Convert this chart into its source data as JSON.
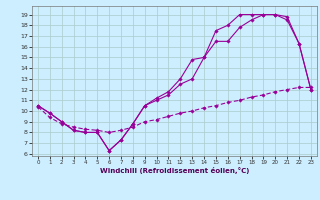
{
  "xlabel": "Windchill (Refroidissement éolien,°C)",
  "background_color": "#cceeff",
  "grid_color": "#aacccc",
  "line_color": "#990099",
  "xlim": [
    -0.5,
    23.5
  ],
  "ylim": [
    5.8,
    19.8
  ],
  "xticks": [
    0,
    1,
    2,
    3,
    4,
    5,
    6,
    7,
    8,
    9,
    10,
    11,
    12,
    13,
    14,
    15,
    16,
    17,
    18,
    19,
    20,
    21,
    22,
    23
  ],
  "yticks": [
    6,
    7,
    8,
    9,
    10,
    11,
    12,
    13,
    14,
    15,
    16,
    17,
    18,
    19
  ],
  "line1_x": [
    0,
    1,
    2,
    3,
    4,
    5,
    6,
    7,
    8,
    9,
    10,
    11,
    12,
    13,
    14,
    15,
    16,
    17,
    18,
    19,
    20,
    21,
    22,
    23
  ],
  "line1_y": [
    10.5,
    9.8,
    9.0,
    8.2,
    8.0,
    8.0,
    6.3,
    7.3,
    8.8,
    10.5,
    11.0,
    11.5,
    12.5,
    13.0,
    15.0,
    16.5,
    16.5,
    17.8,
    18.5,
    19.0,
    19.0,
    18.5,
    16.3,
    12.0
  ],
  "line2_x": [
    0,
    1,
    2,
    3,
    4,
    5,
    6,
    7,
    8,
    9,
    10,
    11,
    12,
    13,
    14,
    15,
    16,
    17,
    18,
    19,
    20,
    21,
    22,
    23
  ],
  "line2_y": [
    10.5,
    9.8,
    9.0,
    8.2,
    8.0,
    8.0,
    6.3,
    7.3,
    8.8,
    10.5,
    11.2,
    11.8,
    13.0,
    14.8,
    15.0,
    17.5,
    18.0,
    19.0,
    19.0,
    19.0,
    19.0,
    18.8,
    16.3,
    12.0
  ],
  "line3_x": [
    0,
    1,
    2,
    3,
    4,
    5,
    6,
    7,
    8,
    9,
    10,
    11,
    12,
    13,
    14,
    15,
    16,
    17,
    18,
    19,
    20,
    21,
    22,
    23
  ],
  "line3_y": [
    10.4,
    9.4,
    8.8,
    8.5,
    8.3,
    8.2,
    8.0,
    8.2,
    8.5,
    9.0,
    9.2,
    9.5,
    9.8,
    10.0,
    10.3,
    10.5,
    10.8,
    11.0,
    11.3,
    11.5,
    11.8,
    12.0,
    12.2,
    12.2
  ]
}
